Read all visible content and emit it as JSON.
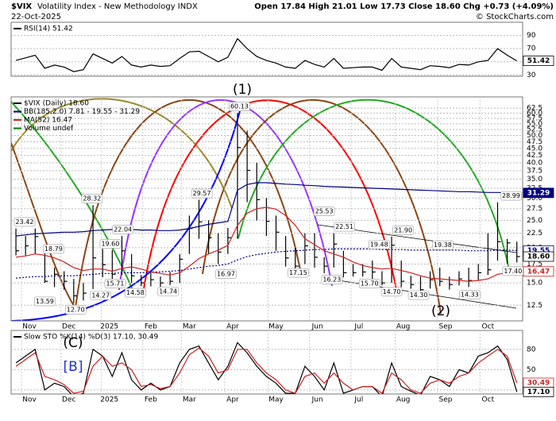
{
  "header": {
    "symbol": "$VIX",
    "name": "Volatility Index - New Methodology INDX",
    "date": "22-Oct-2025",
    "quote": "Open 17.84 High 21.01 Low 17.73 Close 18.60 Chg +0.73 (+4.09%)",
    "credit": "© StockCharts.com"
  },
  "wave_labels": [
    "(1)",
    "(2)",
    "(C)",
    "[B]"
  ],
  "chart_data": [
    {
      "type": "line",
      "title": "RSI(14) 51.42",
      "log_scale": false,
      "grid": true,
      "xlim": [
        -0.5,
        52.6
      ],
      "ylim": [
        28,
        110
      ],
      "yticks": [
        30,
        50,
        70,
        90
      ],
      "x": [
        0,
        1,
        2,
        3,
        4,
        5,
        6,
        7,
        8,
        9,
        10,
        11,
        12,
        13,
        14,
        15,
        16,
        17,
        18,
        19,
        20,
        21,
        22,
        23,
        24,
        25,
        26,
        27,
        28,
        29,
        30,
        31,
        32,
        33,
        34,
        35,
        36,
        37,
        38,
        39,
        40,
        41,
        42,
        43,
        44,
        45,
        46,
        47,
        48,
        49,
        50,
        51,
        52
      ],
      "series": [
        {
          "color": "#000000",
          "values": [
            52,
            56,
            60,
            40,
            45,
            42,
            35,
            38,
            62,
            55,
            48,
            58,
            45,
            42,
            45,
            43,
            44,
            55,
            65,
            66,
            58,
            50,
            57,
            85,
            70,
            58,
            52,
            48,
            42,
            40,
            52,
            46,
            42,
            55,
            40,
            41,
            42,
            42,
            37,
            55,
            42,
            40,
            38,
            44,
            43,
            41,
            46,
            45,
            50,
            52,
            70,
            60,
            51.42
          ]
        }
      ],
      "right_labels": [
        {
          "value": 51.42,
          "color": "#000000",
          "filled": false
        }
      ]
    },
    {
      "type": "ohlc",
      "log_scale": true,
      "grid": true,
      "xlim": [
        -0.5,
        52.6
      ],
      "ylim": [
        11,
        68.5
      ],
      "yticks": [
        12.5,
        {
          "value": 15,
          "label": "15.0"
        },
        17.5,
        {
          "value": 20,
          "label": "20.0"
        },
        22.5,
        {
          "value": 25,
          "label": "25.0"
        },
        27.5,
        {
          "value": 30,
          "label": "30.0"
        },
        32.5,
        {
          "value": 35,
          "label": "35.0"
        },
        37.5,
        {
          "value": 40,
          "label": "40.0"
        },
        42.5,
        {
          "value": 45,
          "label": "45.0"
        },
        47.5,
        {
          "value": 50,
          "label": "50.0"
        },
        52.5,
        {
          "value": 55,
          "label": "55.0"
        },
        57.5,
        {
          "value": 60,
          "label": "60.0"
        },
        62.5
      ],
      "xticks": [
        {
          "value": 1.4,
          "label": "Nov"
        },
        {
          "value": 5.5,
          "label": "Dec"
        },
        {
          "value": 9.7,
          "label": "2025"
        },
        {
          "value": 14.0,
          "label": "Feb"
        },
        {
          "value": 18.0,
          "label": "Mar"
        },
        {
          "value": 22.5,
          "label": "Apr"
        },
        {
          "value": 27.0,
          "label": "May"
        },
        {
          "value": 31.3,
          "label": "Jun"
        },
        {
          "value": 35.6,
          "label": "Jul"
        },
        {
          "value": 40.2,
          "label": "Aug"
        },
        {
          "value": 44.6,
          "label": "Sep"
        },
        {
          "value": 49.0,
          "label": "Oct"
        }
      ],
      "x": [
        0,
        1,
        2,
        3,
        4,
        5,
        6,
        7,
        8,
        9,
        10,
        11,
        12,
        13,
        14,
        15,
        16,
        17,
        18,
        19,
        20,
        21,
        22,
        23,
        24,
        25,
        26,
        27,
        28,
        29,
        30,
        31,
        32,
        33,
        34,
        35,
        36,
        37,
        38,
        39,
        40,
        41,
        42,
        43,
        44,
        45,
        46,
        47,
        48,
        49,
        50,
        51,
        52
      ],
      "series": [
        {
          "name": "$VIX (Daily) 18.60",
          "color": "#000000",
          "values": [
            19.5,
            20.3,
            21.9,
            15.2,
            16.1,
            15.2,
            13.5,
            13.8,
            18.4,
            17.4,
            16.1,
            19.5,
            15.9,
            15.0,
            15.4,
            15.0,
            15.2,
            18.2,
            23.4,
            24.7,
            21.7,
            19.3,
            21.7,
            45.3,
            37.6,
            29.6,
            24.8,
            22.7,
            18.4,
            17.2,
            20.3,
            18.5,
            17.2,
            20.6,
            16.3,
            16.3,
            16.4,
            16.4,
            15.0,
            20.4,
            15.2,
            14.8,
            14.2,
            15.4,
            15.2,
            14.8,
            15.5,
            15.3,
            16.3,
            16.7,
            21.0,
            20.8,
            18.6
          ],
          "high": [
            23.4,
            22.0,
            23.4,
            20.5,
            17.0,
            16.5,
            15.5,
            15.0,
            28.3,
            19.8,
            19.6,
            22.0,
            19.0,
            16.0,
            16.5,
            15.8,
            16.4,
            19.0,
            26.0,
            29.6,
            25.0,
            22.5,
            23.5,
            60.1,
            52.0,
            40.0,
            30.0,
            26.0,
            22.0,
            20.0,
            22.5,
            22.5,
            18.5,
            22.5,
            19.5,
            17.5,
            17.5,
            18.0,
            16.5,
            21.9,
            18.0,
            15.9,
            15.8,
            16.5,
            17.0,
            15.8,
            16.5,
            17.0,
            17.5,
            22.5,
            28.99,
            21.5,
            21.0
          ],
          "low": [
            18.8,
            18.79,
            19.0,
            15.0,
            14.5,
            14.2,
            12.7,
            13.0,
            14.27,
            15.71,
            15.5,
            16.0,
            15.0,
            14.6,
            14.58,
            14.5,
            14.74,
            15.0,
            19.0,
            21.5,
            19.0,
            17.5,
            19.0,
            21.5,
            29.0,
            25.0,
            22.0,
            19.5,
            17.15,
            16.8,
            17.5,
            17.0,
            16.23,
            17.0,
            15.7,
            15.8,
            15.8,
            15.5,
            14.7,
            15.0,
            14.5,
            14.3,
            13.9,
            14.33,
            14.6,
            14.2,
            14.7,
            14.5,
            15.3,
            16.0,
            18.0,
            17.5,
            17.73
          ]
        },
        {
          "name": "BB(185,2.0) 7.81 - 19.55 - 31.29",
          "color": "#000080",
          "dash": true,
          "values": [
            15.6,
            15.7,
            15.8,
            15.8,
            15.9,
            15.9,
            15.9,
            16.0,
            16.1,
            16.2,
            16.2,
            16.3,
            16.3,
            16.3,
            16.4,
            16.4,
            16.5,
            16.6,
            16.8,
            17.0,
            17.2,
            17.3,
            17.5,
            18.1,
            18.6,
            18.9,
            19.1,
            19.3,
            19.4,
            19.5,
            19.6,
            19.7,
            19.7,
            19.8,
            19.8,
            19.8,
            19.8,
            19.8,
            19.7,
            19.7,
            19.7,
            19.6,
            19.6,
            19.6,
            19.6,
            19.6,
            19.6,
            19.5,
            19.5,
            19.5,
            19.6,
            19.6,
            19.55
          ],
          "upper": [
            22.0,
            22.2,
            22.4,
            22.5,
            22.6,
            22.7,
            22.7,
            22.8,
            23.0,
            23.1,
            23.2,
            23.2,
            23.2,
            23.1,
            23.1,
            23.0,
            23.0,
            23.1,
            23.4,
            23.8,
            24.2,
            24.5,
            24.8,
            32.0,
            33.5,
            34.0,
            34.0,
            33.8,
            33.6,
            33.5,
            33.3,
            33.2,
            33.0,
            32.9,
            32.8,
            32.7,
            32.6,
            32.5,
            32.4,
            32.3,
            32.2,
            32.1,
            32.0,
            31.9,
            31.8,
            31.7,
            31.6,
            31.6,
            31.5,
            31.4,
            31.4,
            31.3,
            31.29
          ]
        },
        {
          "name": "MA(52) 16.47",
          "color": "#cc2222",
          "values": [
            18.5,
            18.7,
            19.0,
            18.8,
            18.4,
            17.8,
            17.0,
            16.6,
            16.8,
            16.8,
            16.5,
            16.9,
            17.1,
            16.8,
            16.4,
            16.2,
            16.0,
            16.3,
            17.2,
            18.3,
            19.0,
            19.6,
            20.4,
            24.0,
            26.5,
            27.5,
            27.8,
            27.4,
            26.0,
            24.0,
            21.5,
            20.5,
            19.5,
            19.0,
            18.5,
            17.8,
            17.3,
            17.0,
            16.8,
            16.9,
            16.6,
            16.3,
            15.9,
            15.6,
            15.5,
            15.4,
            15.3,
            15.2,
            15.3,
            15.5,
            16.1,
            16.3,
            16.47
          ]
        }
      ],
      "legend_extra": [
        {
          "name": "Volume undef",
          "color": "#008000"
        }
      ],
      "annotations": [
        {
          "x": 0.9,
          "value": 23.42,
          "pos": "above"
        },
        {
          "x": 3.9,
          "value": 18.79,
          "pos": "above"
        },
        {
          "x": 3.0,
          "value": 13.59,
          "pos": "below"
        },
        {
          "x": 6.2,
          "value": 12.7,
          "label": "12.70",
          "pos": "below"
        },
        {
          "x": 7.9,
          "value": 28.32,
          "pos": "above"
        },
        {
          "x": 8.8,
          "value": 14.27,
          "pos": "below"
        },
        {
          "x": 9.8,
          "value": 19.6,
          "label": "19.60",
          "pos": "above"
        },
        {
          "x": 10.3,
          "value": 15.71,
          "pos": "below"
        },
        {
          "x": 11.1,
          "value": 22.04,
          "pos": "above"
        },
        {
          "x": 12.4,
          "value": 14.58,
          "pos": "below"
        },
        {
          "x": 15.8,
          "value": 14.74,
          "pos": "below"
        },
        {
          "x": 19.3,
          "value": 29.57,
          "pos": "above"
        },
        {
          "x": 21.8,
          "value": 16.97,
          "pos": "below"
        },
        {
          "x": 23.2,
          "value": 60.13,
          "pos": "above"
        },
        {
          "x": 29.3,
          "value": 17.15,
          "pos": "below"
        },
        {
          "x": 32.0,
          "value": 25.53,
          "pos": "above"
        },
        {
          "x": 32.8,
          "value": 16.23,
          "pos": "below"
        },
        {
          "x": 34.1,
          "value": 22.51,
          "pos": "above"
        },
        {
          "x": 36.7,
          "value": 15.7,
          "label": "15.70",
          "pos": "below"
        },
        {
          "x": 37.7,
          "value": 19.48,
          "pos": "above"
        },
        {
          "x": 39.0,
          "value": 14.7,
          "label": "14.70",
          "pos": "below"
        },
        {
          "x": 40.2,
          "value": 21.9,
          "label": "21.90",
          "pos": "above"
        },
        {
          "x": 41.8,
          "value": 14.3,
          "label": "14.30",
          "pos": "below"
        },
        {
          "x": 44.3,
          "value": 19.38,
          "pos": "above"
        },
        {
          "x": 47.1,
          "value": 14.33,
          "pos": "below"
        },
        {
          "x": 51.4,
          "value": 28.99,
          "pos": "above"
        },
        {
          "x": 51.6,
          "value": 17.4,
          "label": "17.40",
          "pos": "below"
        }
      ],
      "right_labels": [
        {
          "value": 31.29,
          "color": "#000080",
          "filled": true
        },
        {
          "value": 19.55,
          "color": "#000080",
          "filled": false
        },
        {
          "value": 18.6,
          "label": "18.60",
          "color": "#000000",
          "filled": false
        },
        {
          "value": 16.47,
          "color": "#cc2222",
          "filled": false
        }
      ]
    },
    {
      "type": "line",
      "title": "Slow STO %K(14) %D(3) 17.10, 30.49",
      "log_scale": false,
      "grid": true,
      "xlim": [
        -0.5,
        52.6
      ],
      "ylim": [
        14,
        108
      ],
      "yticks": [
        20,
        50,
        80
      ],
      "xticks": [
        {
          "value": 1.4,
          "label": "Nov"
        },
        {
          "value": 5.5,
          "label": "Dec"
        },
        {
          "value": 9.7,
          "label": "2025"
        },
        {
          "value": 14.0,
          "label": "Feb"
        },
        {
          "value": 18.0,
          "label": "Mar"
        },
        {
          "value": 22.5,
          "label": "Apr"
        },
        {
          "value": 27.0,
          "label": "May"
        },
        {
          "value": 31.3,
          "label": "Jun"
        },
        {
          "value": 35.6,
          "label": "Jul"
        },
        {
          "value": 40.2,
          "label": "Aug"
        },
        {
          "value": 44.6,
          "label": "Sep"
        },
        {
          "value": 49.0,
          "label": "Oct"
        }
      ],
      "x": [
        0,
        1,
        2,
        3,
        4,
        5,
        6,
        7,
        8,
        9,
        10,
        11,
        12,
        13,
        14,
        15,
        16,
        17,
        18,
        19,
        20,
        21,
        22,
        23,
        24,
        25,
        26,
        27,
        28,
        29,
        30,
        31,
        32,
        33,
        34,
        35,
        36,
        37,
        38,
        39,
        40,
        41,
        42,
        43,
        44,
        45,
        46,
        47,
        48,
        49,
        50,
        51,
        52
      ],
      "series": [
        {
          "color": "#000000",
          "values": [
            60,
            70,
            80,
            20,
            30,
            25,
            10,
            15,
            80,
            70,
            40,
            75,
            35,
            20,
            30,
            20,
            25,
            60,
            80,
            85,
            60,
            35,
            55,
            90,
            75,
            55,
            40,
            30,
            15,
            15,
            55,
            40,
            20,
            60,
            15,
            20,
            25,
            25,
            10,
            60,
            25,
            18,
            12,
            40,
            35,
            25,
            50,
            45,
            70,
            75,
            85,
            65,
            17.1
          ]
        },
        {
          "color": "#cc2222",
          "values": [
            55,
            65,
            75,
            40,
            35,
            28,
            15,
            18,
            55,
            70,
            55,
            60,
            50,
            25,
            28,
            22,
            25,
            45,
            72,
            82,
            70,
            45,
            50,
            80,
            80,
            60,
            45,
            35,
            20,
            15,
            40,
            45,
            30,
            45,
            30,
            20,
            25,
            25,
            15,
            45,
            35,
            20,
            15,
            30,
            35,
            30,
            40,
            45,
            60,
            70,
            80,
            70,
            30.49
          ]
        }
      ],
      "right_labels": [
        {
          "value": 30.49,
          "color": "#cc2222",
          "filled": false
        },
        {
          "value": 17.1,
          "label": "17.10",
          "color": "#000000",
          "filled": false
        }
      ]
    }
  ]
}
